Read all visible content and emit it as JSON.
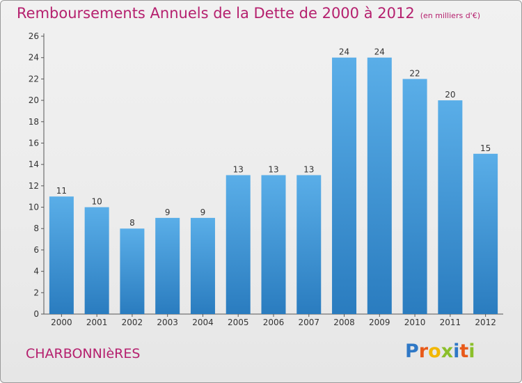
{
  "header": {
    "title": "Remboursements Annuels de la Dette de 2000 à 2012",
    "unit": "(en milliers d'€)"
  },
  "footer": {
    "city": "CHARBONNIèRES",
    "logo_letters": [
      "P",
      "r",
      "o",
      "x",
      "i",
      "t",
      "i"
    ]
  },
  "colors": {
    "title": "#b5206e",
    "bar_top": "#5aaee8",
    "bar_bottom": "#2a7cbf",
    "logo": [
      "#2f78c6",
      "#e85a1a",
      "#f2b700",
      "#8bbf2a",
      "#2f78c6",
      "#e85a1a",
      "#8bbf2a"
    ]
  },
  "chart_data": {
    "type": "bar",
    "title": "Remboursements Annuels de la Dette de 2000 à 2012",
    "xlabel": "",
    "ylabel": "",
    "categories": [
      "2000",
      "2001",
      "2002",
      "2003",
      "2004",
      "2005",
      "2006",
      "2007",
      "2008",
      "2009",
      "2010",
      "2011",
      "2012"
    ],
    "values": [
      11,
      10,
      8,
      9,
      9,
      13,
      13,
      13,
      24,
      24,
      22,
      20,
      15
    ],
    "ylim": [
      0,
      26
    ],
    "yticks": [
      0,
      2,
      4,
      6,
      8,
      10,
      12,
      14,
      16,
      18,
      20,
      22,
      24,
      26
    ],
    "grid": false,
    "legend": "none"
  }
}
